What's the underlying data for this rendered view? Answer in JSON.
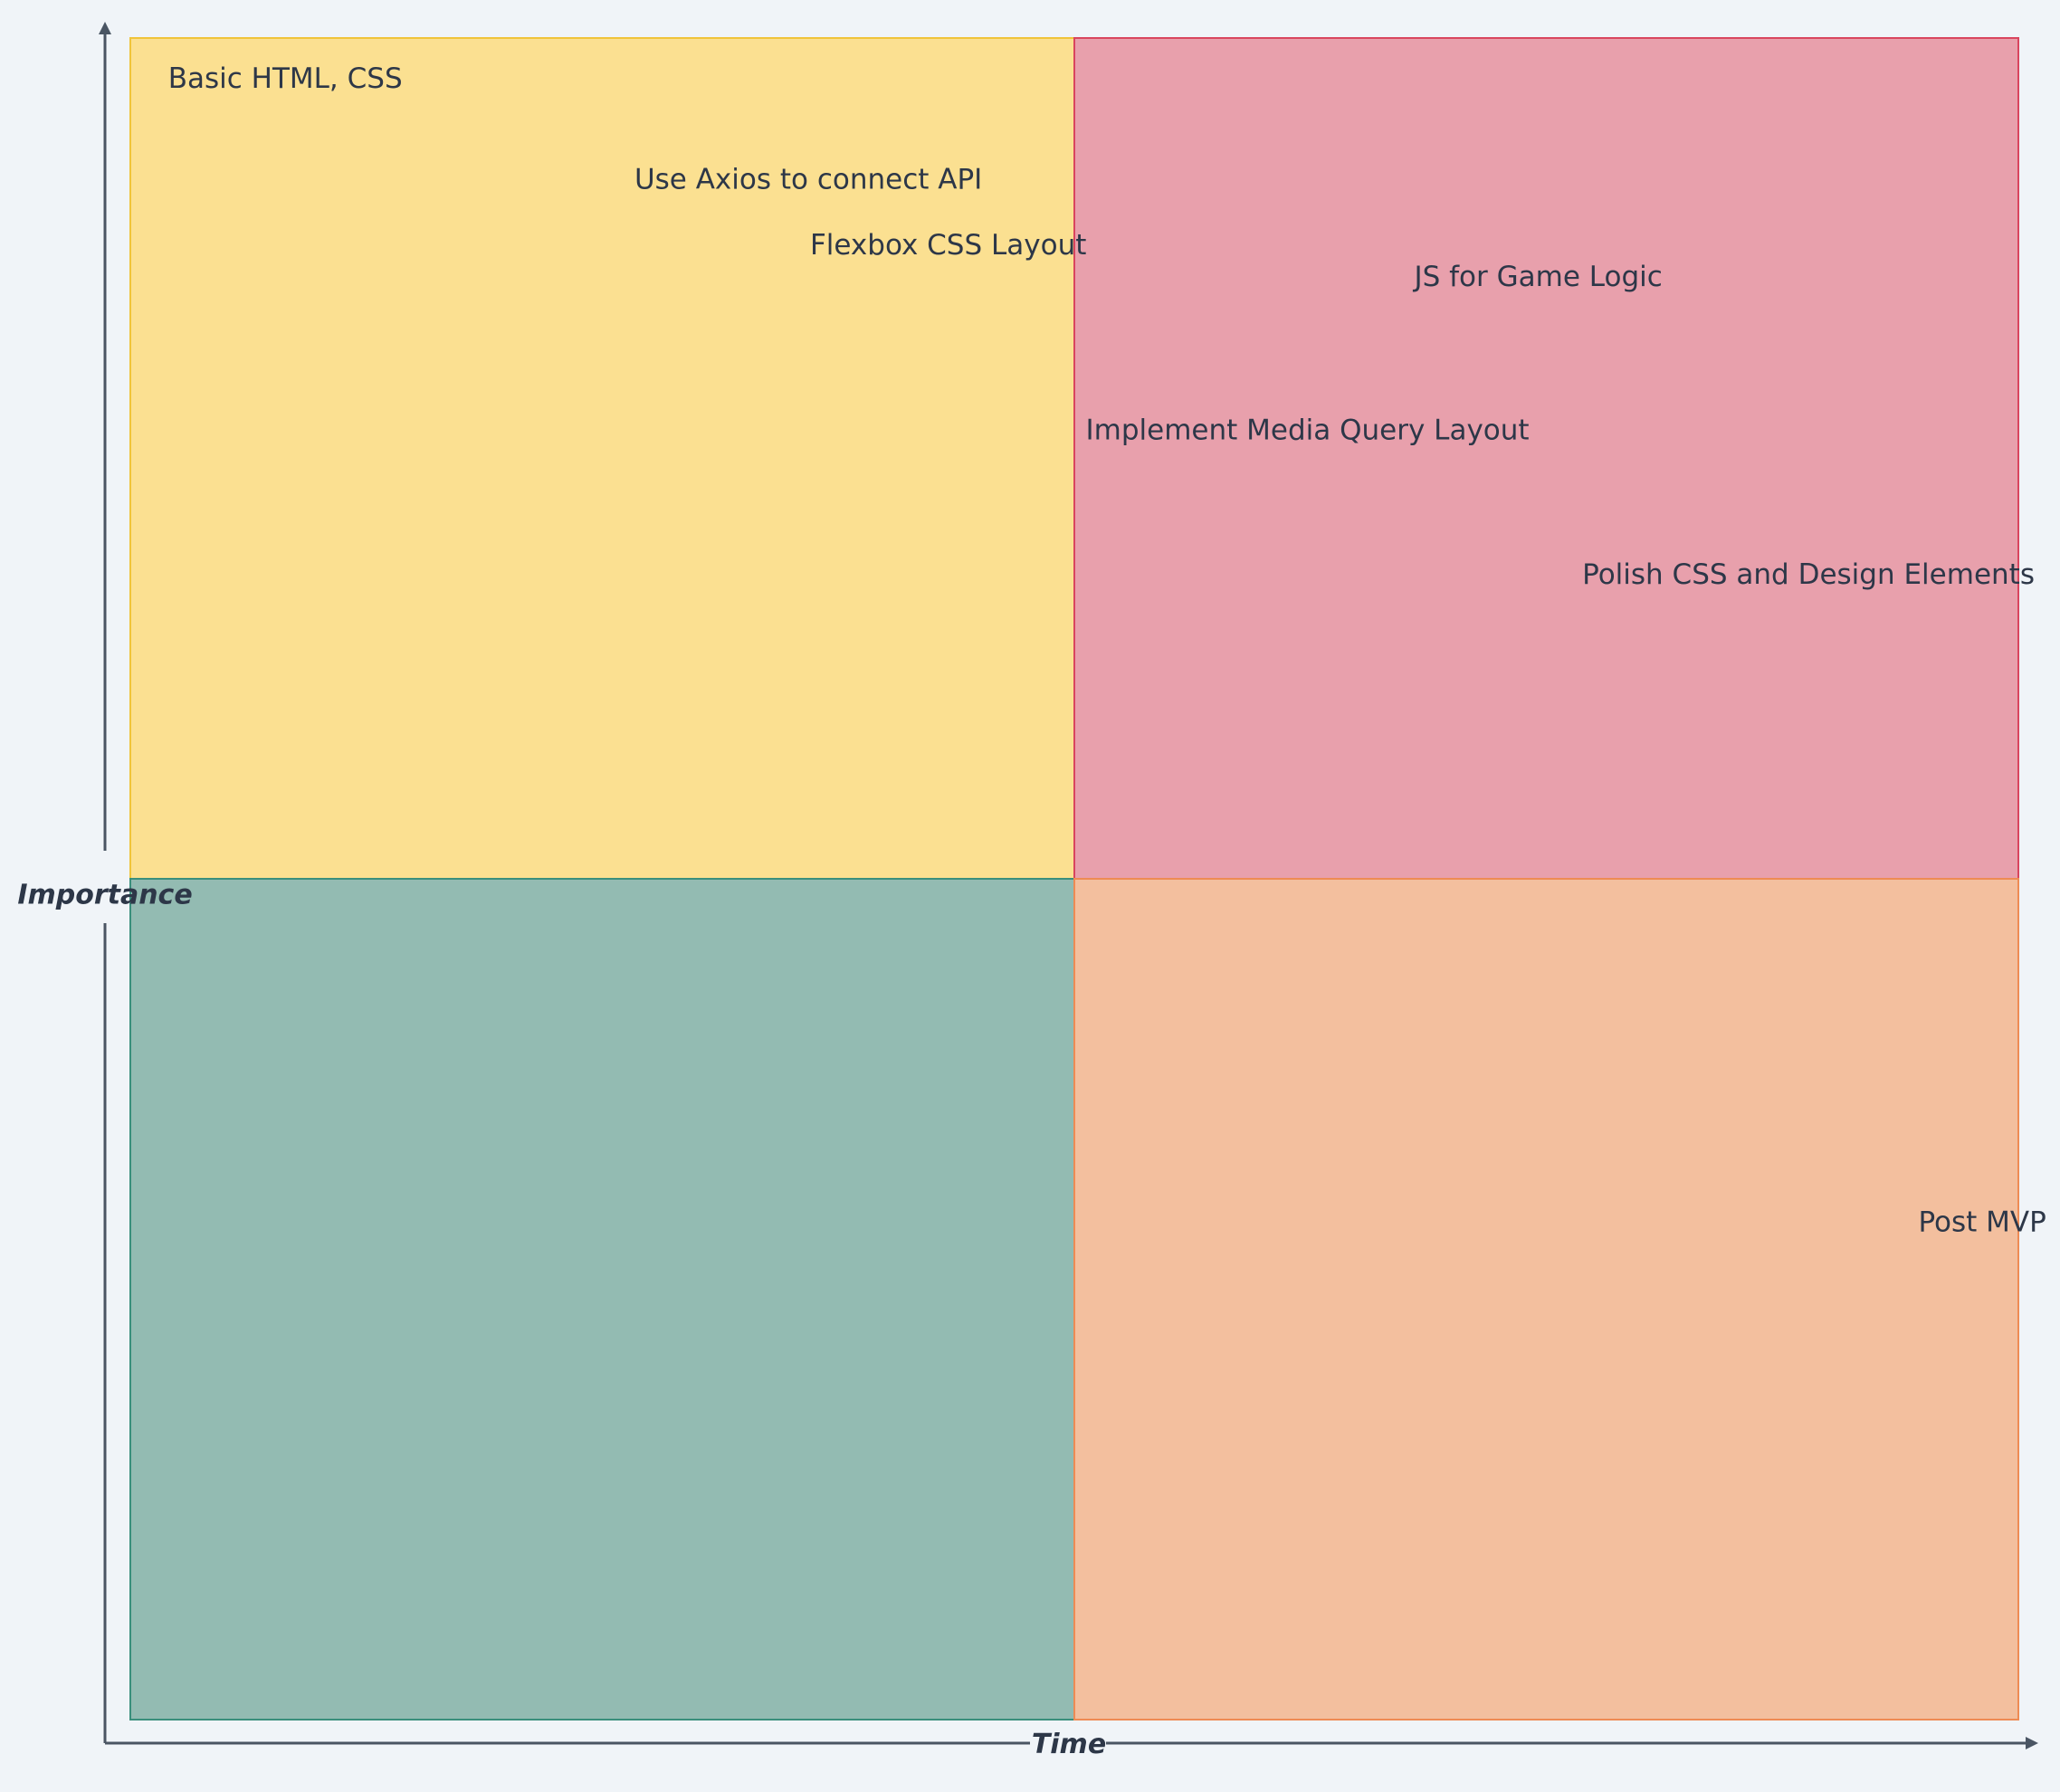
{
  "axes": {
    "x_label": "Time",
    "y_label": "Importance"
  },
  "quadrants": {
    "top_left": {
      "fill": "#fbe091",
      "stroke": "#f0c43a"
    },
    "top_right": {
      "fill": "#e8a0ac",
      "stroke": "#d9455e"
    },
    "bottom_left": {
      "fill": "#93bbb2",
      "stroke": "#3a8f7c"
    },
    "bottom_right": {
      "fill": "#f3bf9e",
      "stroke": "#ee8b54"
    }
  },
  "items": [
    {
      "id": "basic-html-css",
      "label": "Basic HTML, CSS",
      "time": 0.02,
      "importance": 0.975
    },
    {
      "id": "axios-api",
      "label": "Use Axios to connect API",
      "time": 0.267,
      "importance": 0.915
    },
    {
      "id": "flexbox-layout",
      "label": "Flexbox CSS Layout",
      "time": 0.36,
      "importance": 0.876
    },
    {
      "id": "js-game-logic",
      "label": "JS for Game Logic",
      "time": 0.68,
      "importance": 0.857
    },
    {
      "id": "media-query-layout",
      "label": "Implement Media Query Layout",
      "time": 0.506,
      "importance": 0.766
    },
    {
      "id": "polish-css-design",
      "label": "Polish CSS and Design Elements",
      "time": 0.769,
      "importance": 0.68
    },
    {
      "id": "post-mvp",
      "label": "Post MVP",
      "time": 0.947,
      "importance": 0.295
    }
  ]
}
